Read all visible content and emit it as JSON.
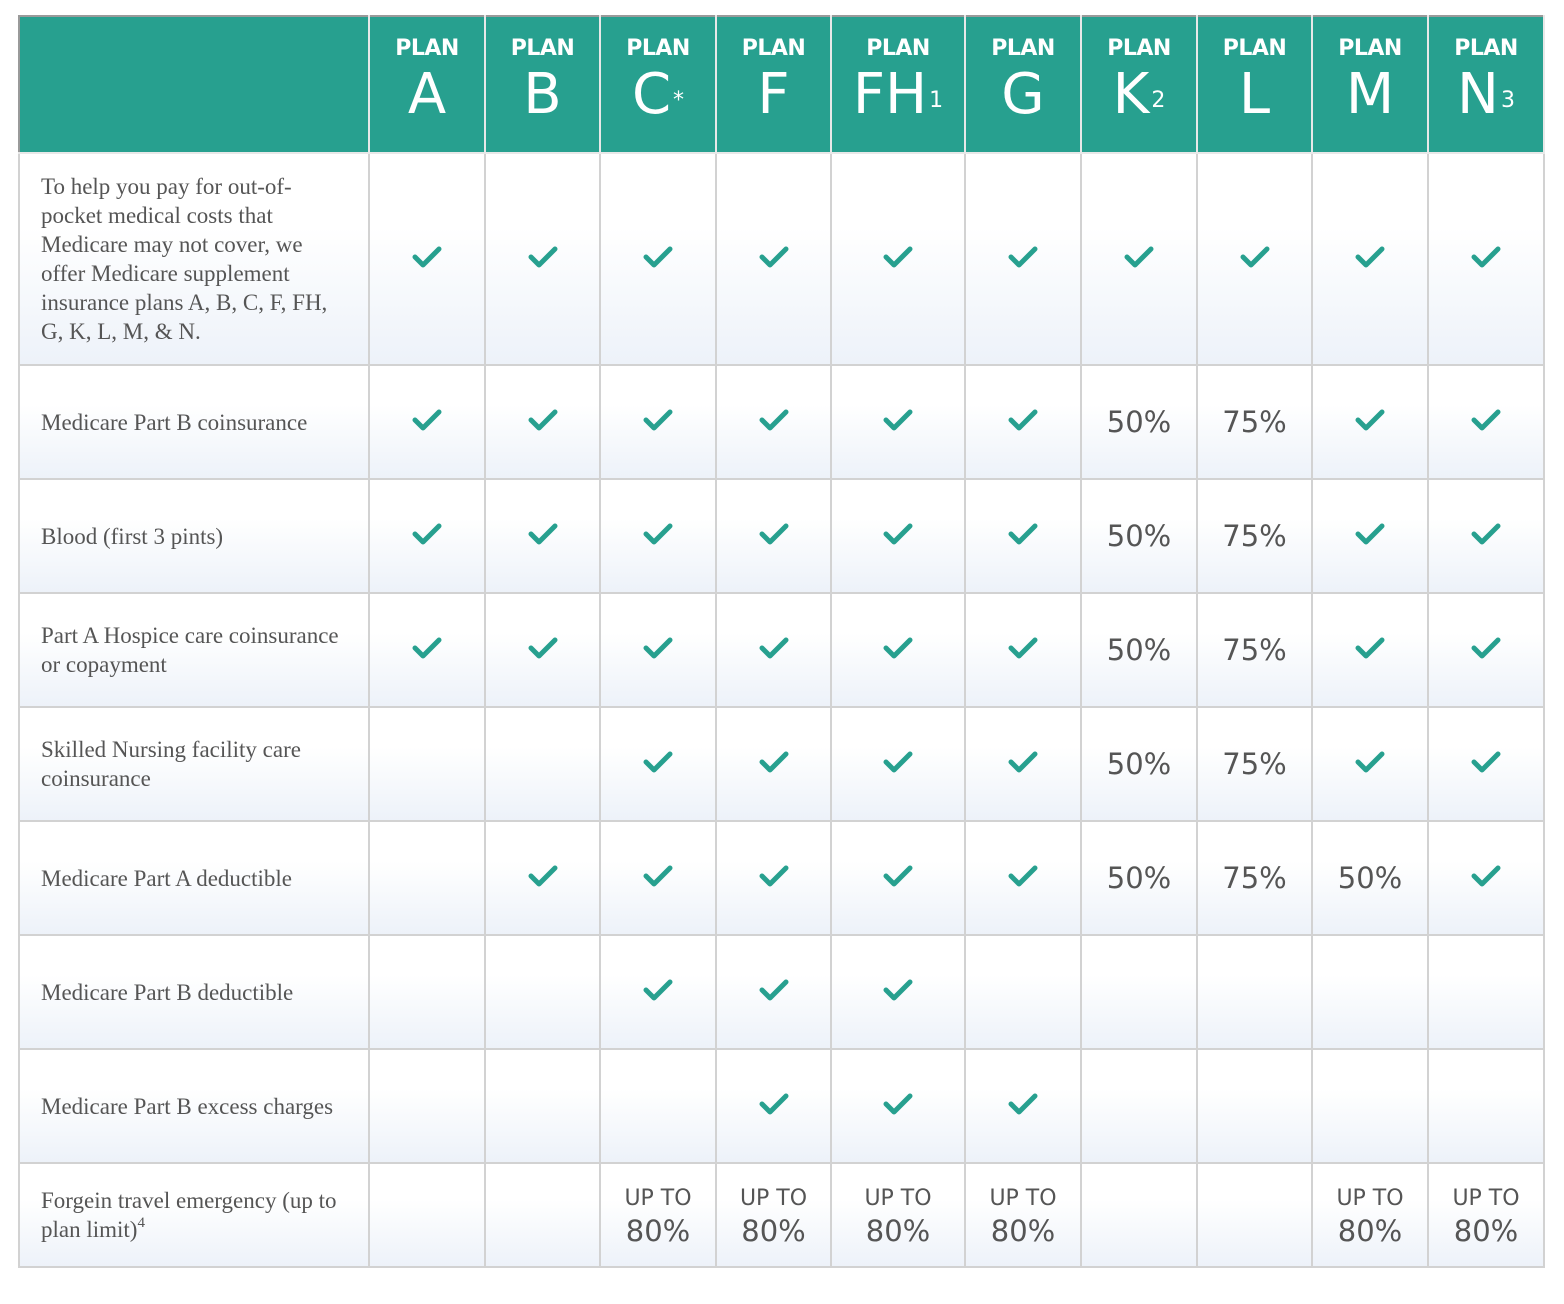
{
  "table": {
    "columns": [
      {
        "plan": "PLAN",
        "letter": "A"
      },
      {
        "plan": "PLAN",
        "letter": "B"
      },
      {
        "plan": "PLAN",
        "letter": "C",
        "sup": "*"
      },
      {
        "plan": "PLAN",
        "letter": "F"
      },
      {
        "plan": "PLAN",
        "letter": "FH",
        "sup": "1"
      },
      {
        "plan": "PLAN",
        "letter": "G"
      },
      {
        "plan": "PLAN",
        "letter": "K",
        "sup": "2"
      },
      {
        "plan": "PLAN",
        "letter": "L"
      },
      {
        "plan": "PLAN",
        "letter": "M"
      },
      {
        "plan": "PLAN",
        "letter": "N",
        "sup": "3"
      }
    ],
    "rows": [
      {
        "label": "To help you pay for out-of-pocket medical costs that Medicare may not cover, we offer Medicare supplement insurance plans A, B, C, F, FH, G, K, L, M, & N.",
        "cells": [
          true,
          true,
          true,
          true,
          true,
          true,
          true,
          true,
          true,
          true
        ]
      },
      {
        "label": "Medicare Part B coinsurance",
        "cells": [
          true,
          true,
          true,
          true,
          true,
          true,
          "50%",
          "75%",
          true,
          true
        ]
      },
      {
        "label": "Blood (first 3 pints)",
        "cells": [
          true,
          true,
          true,
          true,
          true,
          true,
          "50%",
          "75%",
          true,
          true
        ]
      },
      {
        "label": "Part A Hospice care coinsurance or copayment",
        "cells": [
          true,
          true,
          true,
          true,
          true,
          true,
          "50%",
          "75%",
          true,
          true
        ]
      },
      {
        "label": "Skilled Nursing facility care coinsurance",
        "cells": [
          null,
          null,
          true,
          true,
          true,
          true,
          "50%",
          "75%",
          true,
          true
        ]
      },
      {
        "label": "Medicare Part A deductible",
        "cells": [
          null,
          true,
          true,
          true,
          true,
          true,
          "50%",
          "75%",
          "50%",
          true
        ]
      },
      {
        "label": "Medicare Part B deductible",
        "cells": [
          null,
          null,
          true,
          true,
          true,
          null,
          null,
          null,
          null,
          null
        ]
      },
      {
        "label": "Medicare Part B excess charges",
        "cells": [
          null,
          null,
          null,
          true,
          true,
          true,
          null,
          null,
          null,
          null
        ]
      },
      {
        "label": "Forgein travel emergency (up to plan limit)",
        "note": "4",
        "cells": [
          null,
          null,
          {
            "top": "UP TO",
            "value": "80%"
          },
          {
            "top": "UP TO",
            "value": "80%"
          },
          {
            "top": "UP TO",
            "value": "80%"
          },
          {
            "top": "UP TO",
            "value": "80%"
          },
          null,
          null,
          {
            "top": "UP TO",
            "value": "80%"
          },
          {
            "top": "UP TO",
            "value": "80%"
          }
        ]
      }
    ]
  }
}
